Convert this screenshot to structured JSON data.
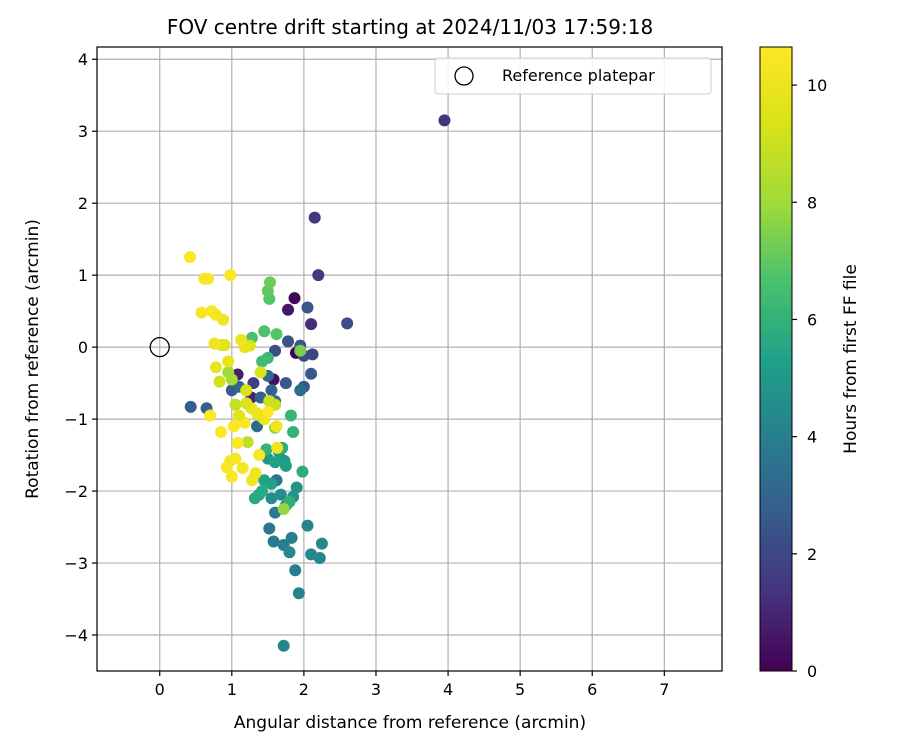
{
  "chart_data": {
    "type": "scatter",
    "title": "FOV centre drift starting at 2024/11/03 17:59:18",
    "xlabel": "Angular distance from reference (arcmin)",
    "ylabel": "Rotation from reference (arcmin)",
    "xlim": [
      -0.87,
      7.8
    ],
    "ylim": [
      -4.5,
      4.17
    ],
    "xticks": [
      0,
      1,
      2,
      3,
      4,
      5,
      6,
      7
    ],
    "yticks": [
      -4,
      -3,
      -2,
      -1,
      0,
      1,
      2,
      3,
      4
    ],
    "grid": true,
    "legend": {
      "placement": "top-right",
      "entries": [
        "Reference platepar"
      ]
    },
    "reference_point": {
      "x": 0,
      "y": 0,
      "label": "Reference platepar"
    },
    "colorbar": {
      "label": "Hours from first FF file",
      "colormap": "viridis",
      "range": [
        0,
        10.65
      ],
      "ticks": [
        0,
        2,
        4,
        6,
        8,
        10
      ]
    },
    "points": [
      [
        1.89,
        -0.08,
        0.0
      ],
      [
        1.87,
        0.68,
        0.2
      ],
      [
        1.58,
        -0.45,
        0.4
      ],
      [
        1.78,
        0.52,
        0.6
      ],
      [
        1.08,
        -0.38,
        0.8
      ],
      [
        1.27,
        -0.7,
        1.0
      ],
      [
        2.1,
        0.32,
        1.2
      ],
      [
        3.95,
        3.15,
        1.4
      ],
      [
        2.15,
        1.8,
        1.5
      ],
      [
        2.2,
        1.0,
        1.6
      ],
      [
        1.3,
        -0.5,
        1.8
      ],
      [
        2.0,
        -0.12,
        2.0
      ],
      [
        2.12,
        -0.1,
        2.0
      ],
      [
        2.6,
        0.33,
        2.2
      ],
      [
        1.6,
        -0.05,
        2.2
      ],
      [
        1.78,
        0.08,
        2.3
      ],
      [
        1.95,
        0.02,
        2.4
      ],
      [
        2.05,
        0.55,
        2.5
      ],
      [
        1.75,
        -0.5,
        2.5
      ],
      [
        2.0,
        -0.55,
        2.6
      ],
      [
        2.1,
        -0.37,
        2.6
      ],
      [
        1.0,
        -0.6,
        2.7
      ],
      [
        0.43,
        -0.83,
        2.7
      ],
      [
        0.65,
        -0.85,
        2.8
      ],
      [
        1.4,
        -0.7,
        2.9
      ],
      [
        1.1,
        -0.55,
        3.0
      ],
      [
        1.55,
        -0.6,
        3.0
      ],
      [
        1.35,
        -1.1,
        3.1
      ],
      [
        1.5,
        -0.4,
        3.2
      ],
      [
        1.95,
        -0.6,
        3.3
      ],
      [
        1.6,
        -0.75,
        3.4
      ],
      [
        1.62,
        -1.85,
        3.6
      ],
      [
        1.52,
        -2.52,
        3.7
      ],
      [
        1.6,
        -2.3,
        3.8
      ],
      [
        1.58,
        -2.7,
        3.8
      ],
      [
        1.72,
        -2.75,
        3.9
      ],
      [
        1.83,
        -2.65,
        4.0
      ],
      [
        1.88,
        -3.1,
        4.0
      ],
      [
        1.75,
        -2.2,
        4.1
      ],
      [
        1.93,
        -3.42,
        4.1
      ],
      [
        1.72,
        -4.15,
        4.2
      ],
      [
        2.05,
        -2.48,
        4.2
      ],
      [
        2.1,
        -2.88,
        4.3
      ],
      [
        2.22,
        -2.93,
        4.3
      ],
      [
        2.25,
        -2.73,
        4.4
      ],
      [
        1.8,
        -2.85,
        4.4
      ],
      [
        1.55,
        -2.1,
        4.5
      ],
      [
        1.68,
        -2.05,
        4.6
      ],
      [
        1.85,
        -2.08,
        4.7
      ],
      [
        1.9,
        -1.95,
        4.8
      ],
      [
        1.5,
        -1.55,
        4.9
      ],
      [
        1.65,
        -1.45,
        5.0
      ],
      [
        1.68,
        -1.55,
        5.0
      ],
      [
        1.73,
        -1.58,
        5.1
      ],
      [
        1.75,
        -1.65,
        5.2
      ],
      [
        1.6,
        -1.6,
        5.3
      ],
      [
        1.55,
        -1.9,
        5.3
      ],
      [
        1.45,
        -1.85,
        5.4
      ],
      [
        1.38,
        -2.05,
        5.5
      ],
      [
        1.32,
        -2.1,
        5.6
      ],
      [
        1.42,
        -2.0,
        5.7
      ],
      [
        1.7,
        -1.4,
        5.8
      ],
      [
        1.98,
        -1.73,
        5.8
      ],
      [
        1.8,
        -2.15,
        5.9
      ],
      [
        1.48,
        -1.42,
        6.0
      ],
      [
        1.85,
        -1.18,
        6.0
      ],
      [
        1.82,
        -0.95,
        6.1
      ],
      [
        1.5,
        -0.15,
        6.3
      ],
      [
        1.42,
        -0.2,
        6.4
      ],
      [
        1.28,
        0.13,
        6.6
      ],
      [
        1.45,
        0.22,
        6.7
      ],
      [
        1.62,
        0.18,
        6.8
      ],
      [
        1.52,
        0.67,
        6.8
      ],
      [
        1.5,
        0.78,
        7.0
      ],
      [
        1.53,
        0.9,
        7.2
      ],
      [
        1.95,
        -0.05,
        7.4
      ],
      [
        1.6,
        -1.12,
        7.6
      ],
      [
        1.72,
        -2.25,
        7.8
      ],
      [
        0.95,
        -0.35,
        8.0
      ],
      [
        1.0,
        -0.45,
        8.2
      ],
      [
        1.38,
        -0.95,
        8.5
      ],
      [
        1.22,
        -1.32,
        8.7
      ],
      [
        1.05,
        -0.8,
        8.8
      ],
      [
        1.6,
        -0.8,
        9.0
      ],
      [
        1.52,
        -0.75,
        9.0
      ],
      [
        0.83,
        -0.48,
        9.2
      ],
      [
        1.2,
        -0.6,
        9.3
      ],
      [
        1.4,
        -0.35,
        9.4
      ],
      [
        1.25,
        0.02,
        9.5
      ],
      [
        0.9,
        0.03,
        9.6
      ],
      [
        0.85,
        0.03,
        9.7
      ],
      [
        1.18,
        0.0,
        9.8
      ],
      [
        0.95,
        -0.2,
        9.8
      ],
      [
        1.27,
        -0.85,
        9.9
      ],
      [
        1.35,
        -0.92,
        10.0
      ],
      [
        1.45,
        -1.0,
        10.0
      ],
      [
        1.62,
        -1.1,
        10.1
      ],
      [
        1.63,
        -1.4,
        10.1
      ],
      [
        1.33,
        -1.75,
        10.2
      ],
      [
        1.28,
        -1.85,
        10.2
      ],
      [
        1.15,
        -1.68,
        10.3
      ],
      [
        1.05,
        -1.55,
        10.3
      ],
      [
        0.98,
        -1.58,
        10.4
      ],
      [
        0.93,
        -1.67,
        10.4
      ],
      [
        1.0,
        -1.8,
        10.5
      ],
      [
        1.03,
        -1.1,
        10.5
      ],
      [
        1.18,
        -1.05,
        10.5
      ],
      [
        1.08,
        -1.33,
        10.6
      ],
      [
        1.38,
        -1.5,
        10.6
      ],
      [
        1.5,
        -0.9,
        10.6
      ],
      [
        0.85,
        -1.18,
        10.6
      ],
      [
        0.7,
        -0.95,
        10.6
      ],
      [
        0.58,
        0.48,
        10.4
      ],
      [
        0.72,
        0.5,
        10.5
      ],
      [
        0.78,
        0.45,
        10.3
      ],
      [
        0.88,
        0.38,
        10.2
      ],
      [
        0.62,
        0.95,
        10.5
      ],
      [
        0.67,
        0.95,
        10.4
      ],
      [
        0.98,
        1.0,
        10.6
      ],
      [
        0.42,
        1.25,
        10.6
      ],
      [
        0.76,
        0.05,
        10.1
      ],
      [
        1.13,
        0.1,
        10.0
      ],
      [
        0.78,
        -0.28,
        9.9
      ],
      [
        1.1,
        -0.95,
        9.7
      ],
      [
        1.2,
        -0.78,
        9.6
      ]
    ]
  }
}
